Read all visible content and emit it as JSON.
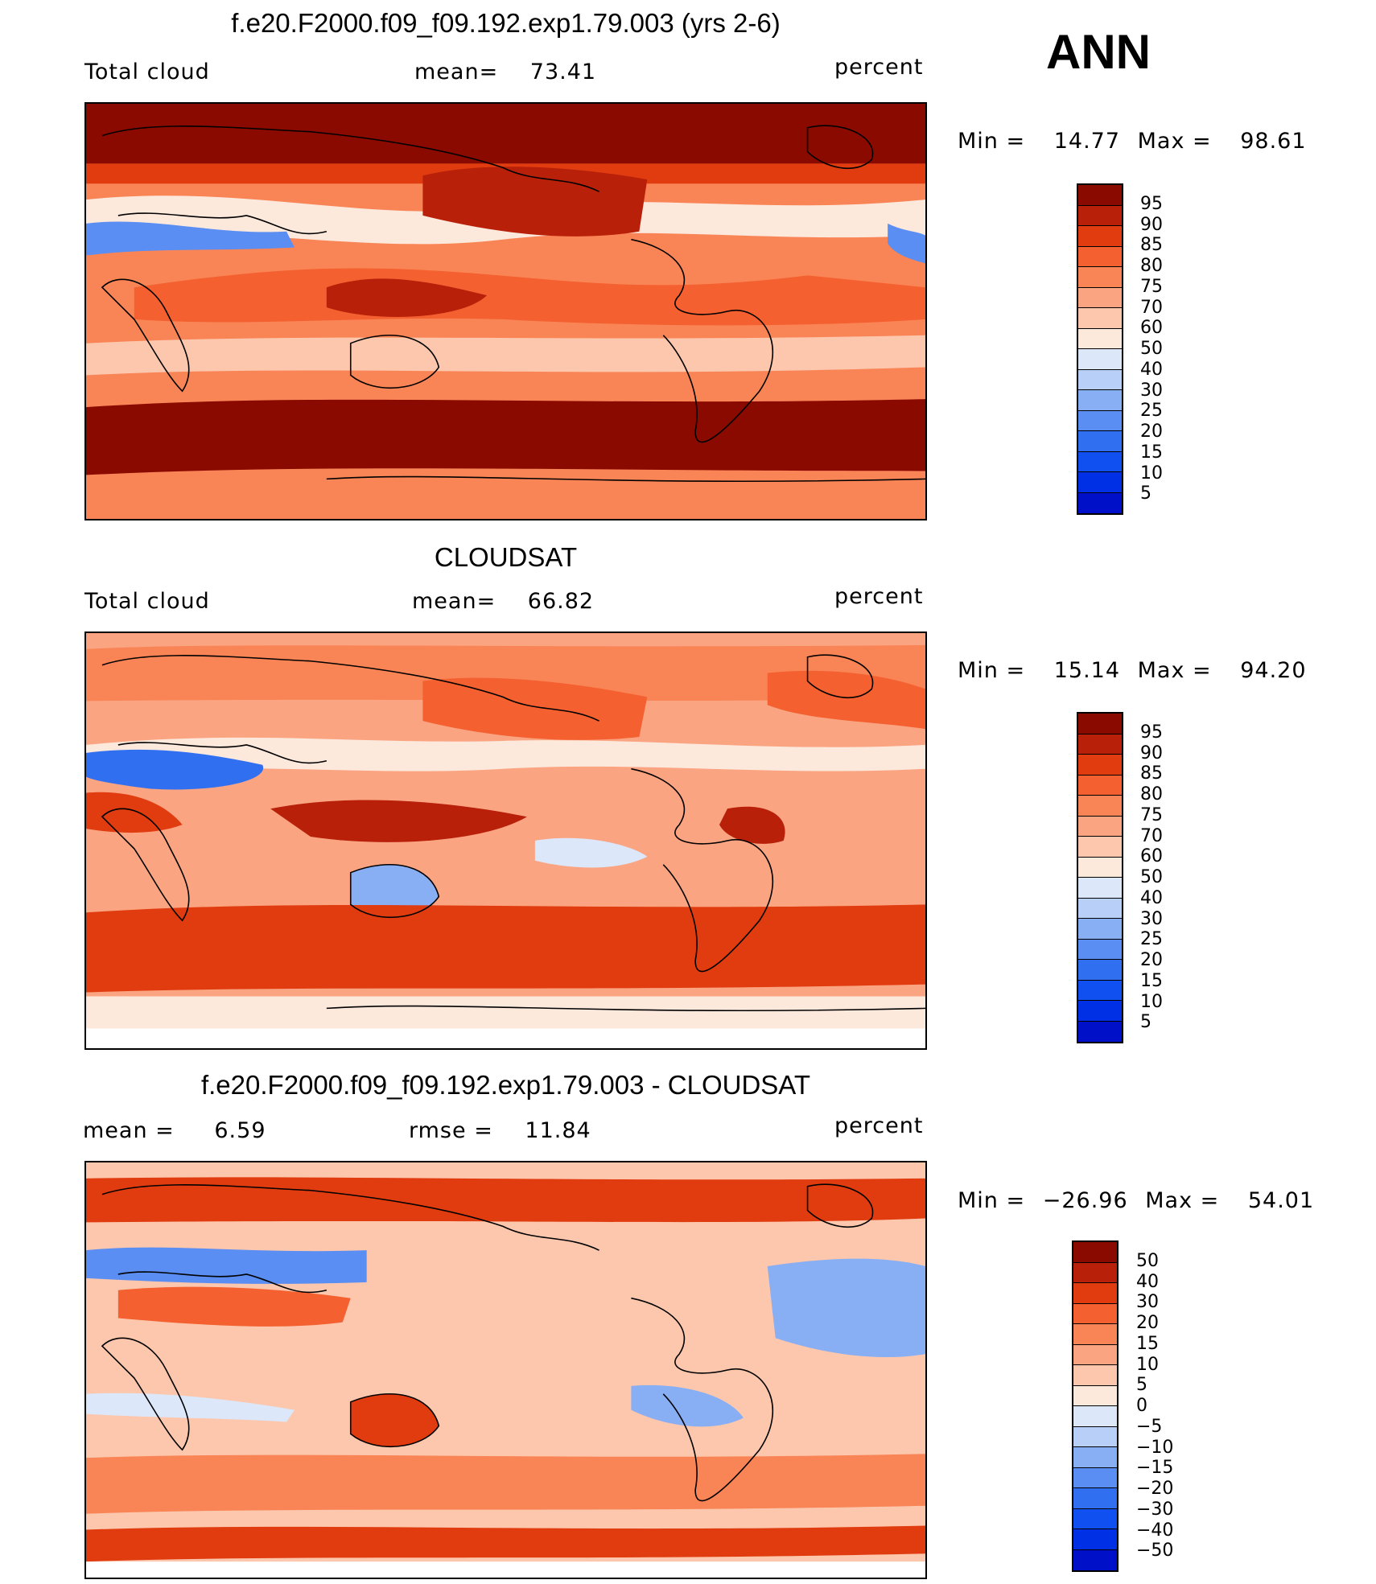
{
  "season": "ANN",
  "palette": {
    "total": [
      "#000080",
      "#0010c8",
      "#0030e6",
      "#1050f0",
      "#3070f0",
      "#5a8ef2",
      "#88aef4",
      "#b8cff7",
      "#dce8fa",
      "#fde8dc",
      "#fcc7ad",
      "#fba482",
      "#f98456",
      "#f4602f",
      "#e03c10",
      "#b8200a",
      "#8a0a00"
    ],
    "diff": [
      "#000080",
      "#0010c8",
      "#0030e6",
      "#1050f0",
      "#3070f0",
      "#5a8ef2",
      "#88aef4",
      "#b8cff7",
      "#dce8fa",
      "#fde8dc",
      "#fcc7ad",
      "#fba482",
      "#f98456",
      "#f4602f",
      "#e03c10",
      "#b8200a",
      "#8a0a00"
    ]
  },
  "panels": [
    {
      "title": "f.e20.F2000.f09_f09.192.exp1.79.003 (yrs 2-6)",
      "left": "Total cloud",
      "mid_label": "mean=",
      "mid_value": "73.41",
      "right": "percent",
      "min_label": "Min =",
      "min_value": "14.77",
      "max_label": "Max =",
      "max_value": "98.61",
      "ticks": [
        "95",
        "90",
        "85",
        "80",
        "75",
        "70",
        "60",
        "50",
        "40",
        "30",
        "25",
        "20",
        "15",
        "10",
        "5"
      ]
    },
    {
      "title": "CLOUDSAT",
      "left": "Total cloud",
      "mid_label": "mean=",
      "mid_value": "66.82",
      "right": "percent",
      "min_label": "Min =",
      "min_value": "15.14",
      "max_label": "Max =",
      "max_value": "94.20",
      "ticks": [
        "95",
        "90",
        "85",
        "80",
        "75",
        "70",
        "60",
        "50",
        "40",
        "30",
        "25",
        "20",
        "15",
        "10",
        "5"
      ]
    },
    {
      "title": "f.e20.F2000.f09_f09.192.exp1.79.003 - CLOUDSAT",
      "left_label": "mean =",
      "left_value": "6.59",
      "mid_label": "rmse =",
      "mid_value": "11.84",
      "right": "percent",
      "min_label": "Min =",
      "min_value": "−26.96",
      "max_label": "Max =",
      "max_value": "54.01",
      "ticks": [
        "50",
        "40",
        "30",
        "20",
        "15",
        "10",
        "5",
        "0",
        "−5",
        "−10",
        "−15",
        "−20",
        "−30",
        "−40",
        "−50"
      ]
    }
  ]
}
